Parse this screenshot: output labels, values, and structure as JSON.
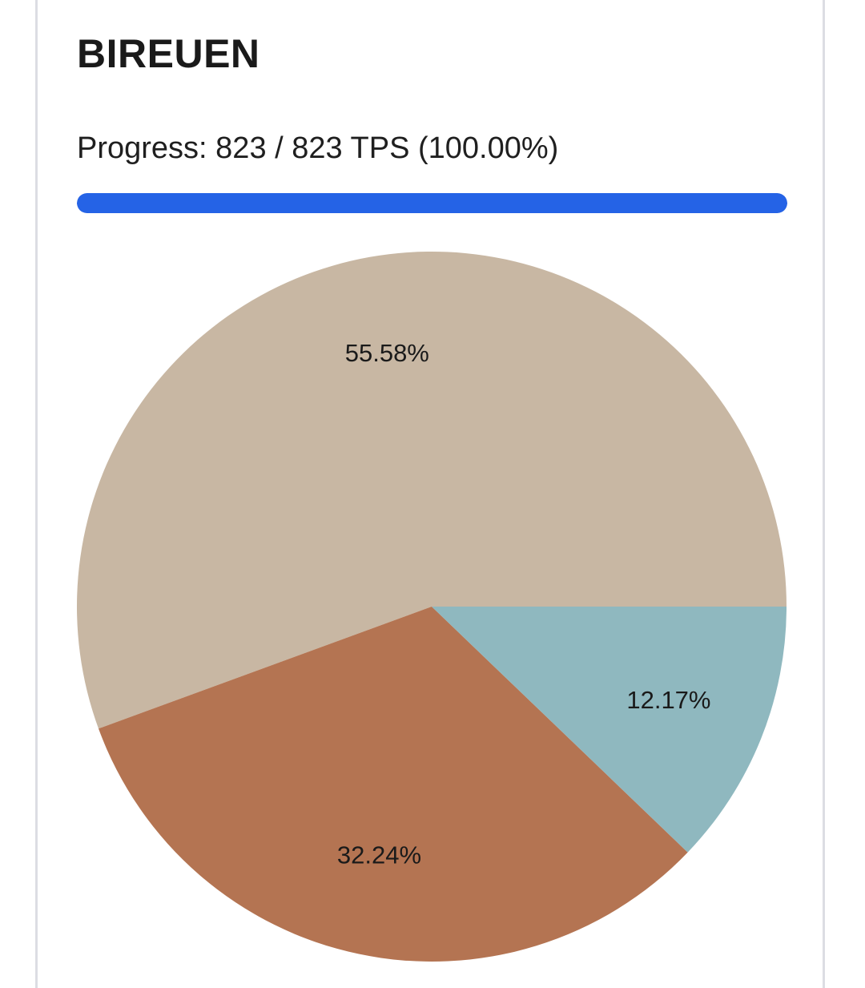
{
  "header": {
    "title": "BIREUEN",
    "progress_label": "Progress: 823 / 823 TPS (100.00%)",
    "progress_fraction": 1.0,
    "accent_color": "#2563e6"
  },
  "chart_data": {
    "type": "pie",
    "title": "",
    "slices": [
      {
        "value": 55.58,
        "label": "55.58%",
        "color": "#c8b7a3"
      },
      {
        "value": 32.24,
        "label": "32.24%",
        "color": "#b47452"
      },
      {
        "value": 12.17,
        "label": "12.17%",
        "color": "#8fb8bf"
      }
    ],
    "legend": "none"
  }
}
